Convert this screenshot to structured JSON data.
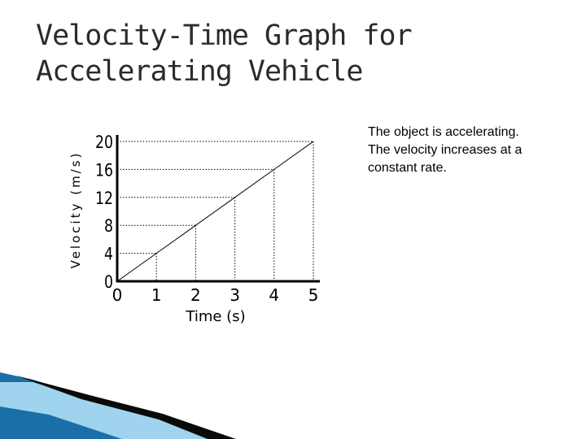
{
  "slide": {
    "title": "Velocity-Time Graph for Accelerating Vehicle",
    "note": "The object is accelerating. The velocity increases at a constant rate."
  },
  "chart_data": {
    "type": "line",
    "title": "",
    "xlabel": "Time (s)",
    "ylabel": "Velocity (m/s)",
    "x_ticks": [
      "0",
      "1",
      "2",
      "3",
      "4",
      "5"
    ],
    "y_ticks": [
      "0",
      "4",
      "8",
      "12",
      "16",
      "20"
    ],
    "xlim": [
      0,
      5
    ],
    "ylim": [
      0,
      20
    ],
    "grid": "dotted guide lines from each data point to the axes",
    "series": [
      {
        "x": [
          0,
          1,
          2,
          3,
          4,
          5
        ],
        "y": [
          0,
          4,
          8,
          12,
          16,
          20
        ]
      }
    ],
    "colors": {
      "line": "#000000",
      "guides": "#000000"
    }
  },
  "decor": {
    "colors": [
      "#1b6fa8",
      "#4aa8d8",
      "#9fd3ee",
      "#0a0a0a"
    ]
  }
}
